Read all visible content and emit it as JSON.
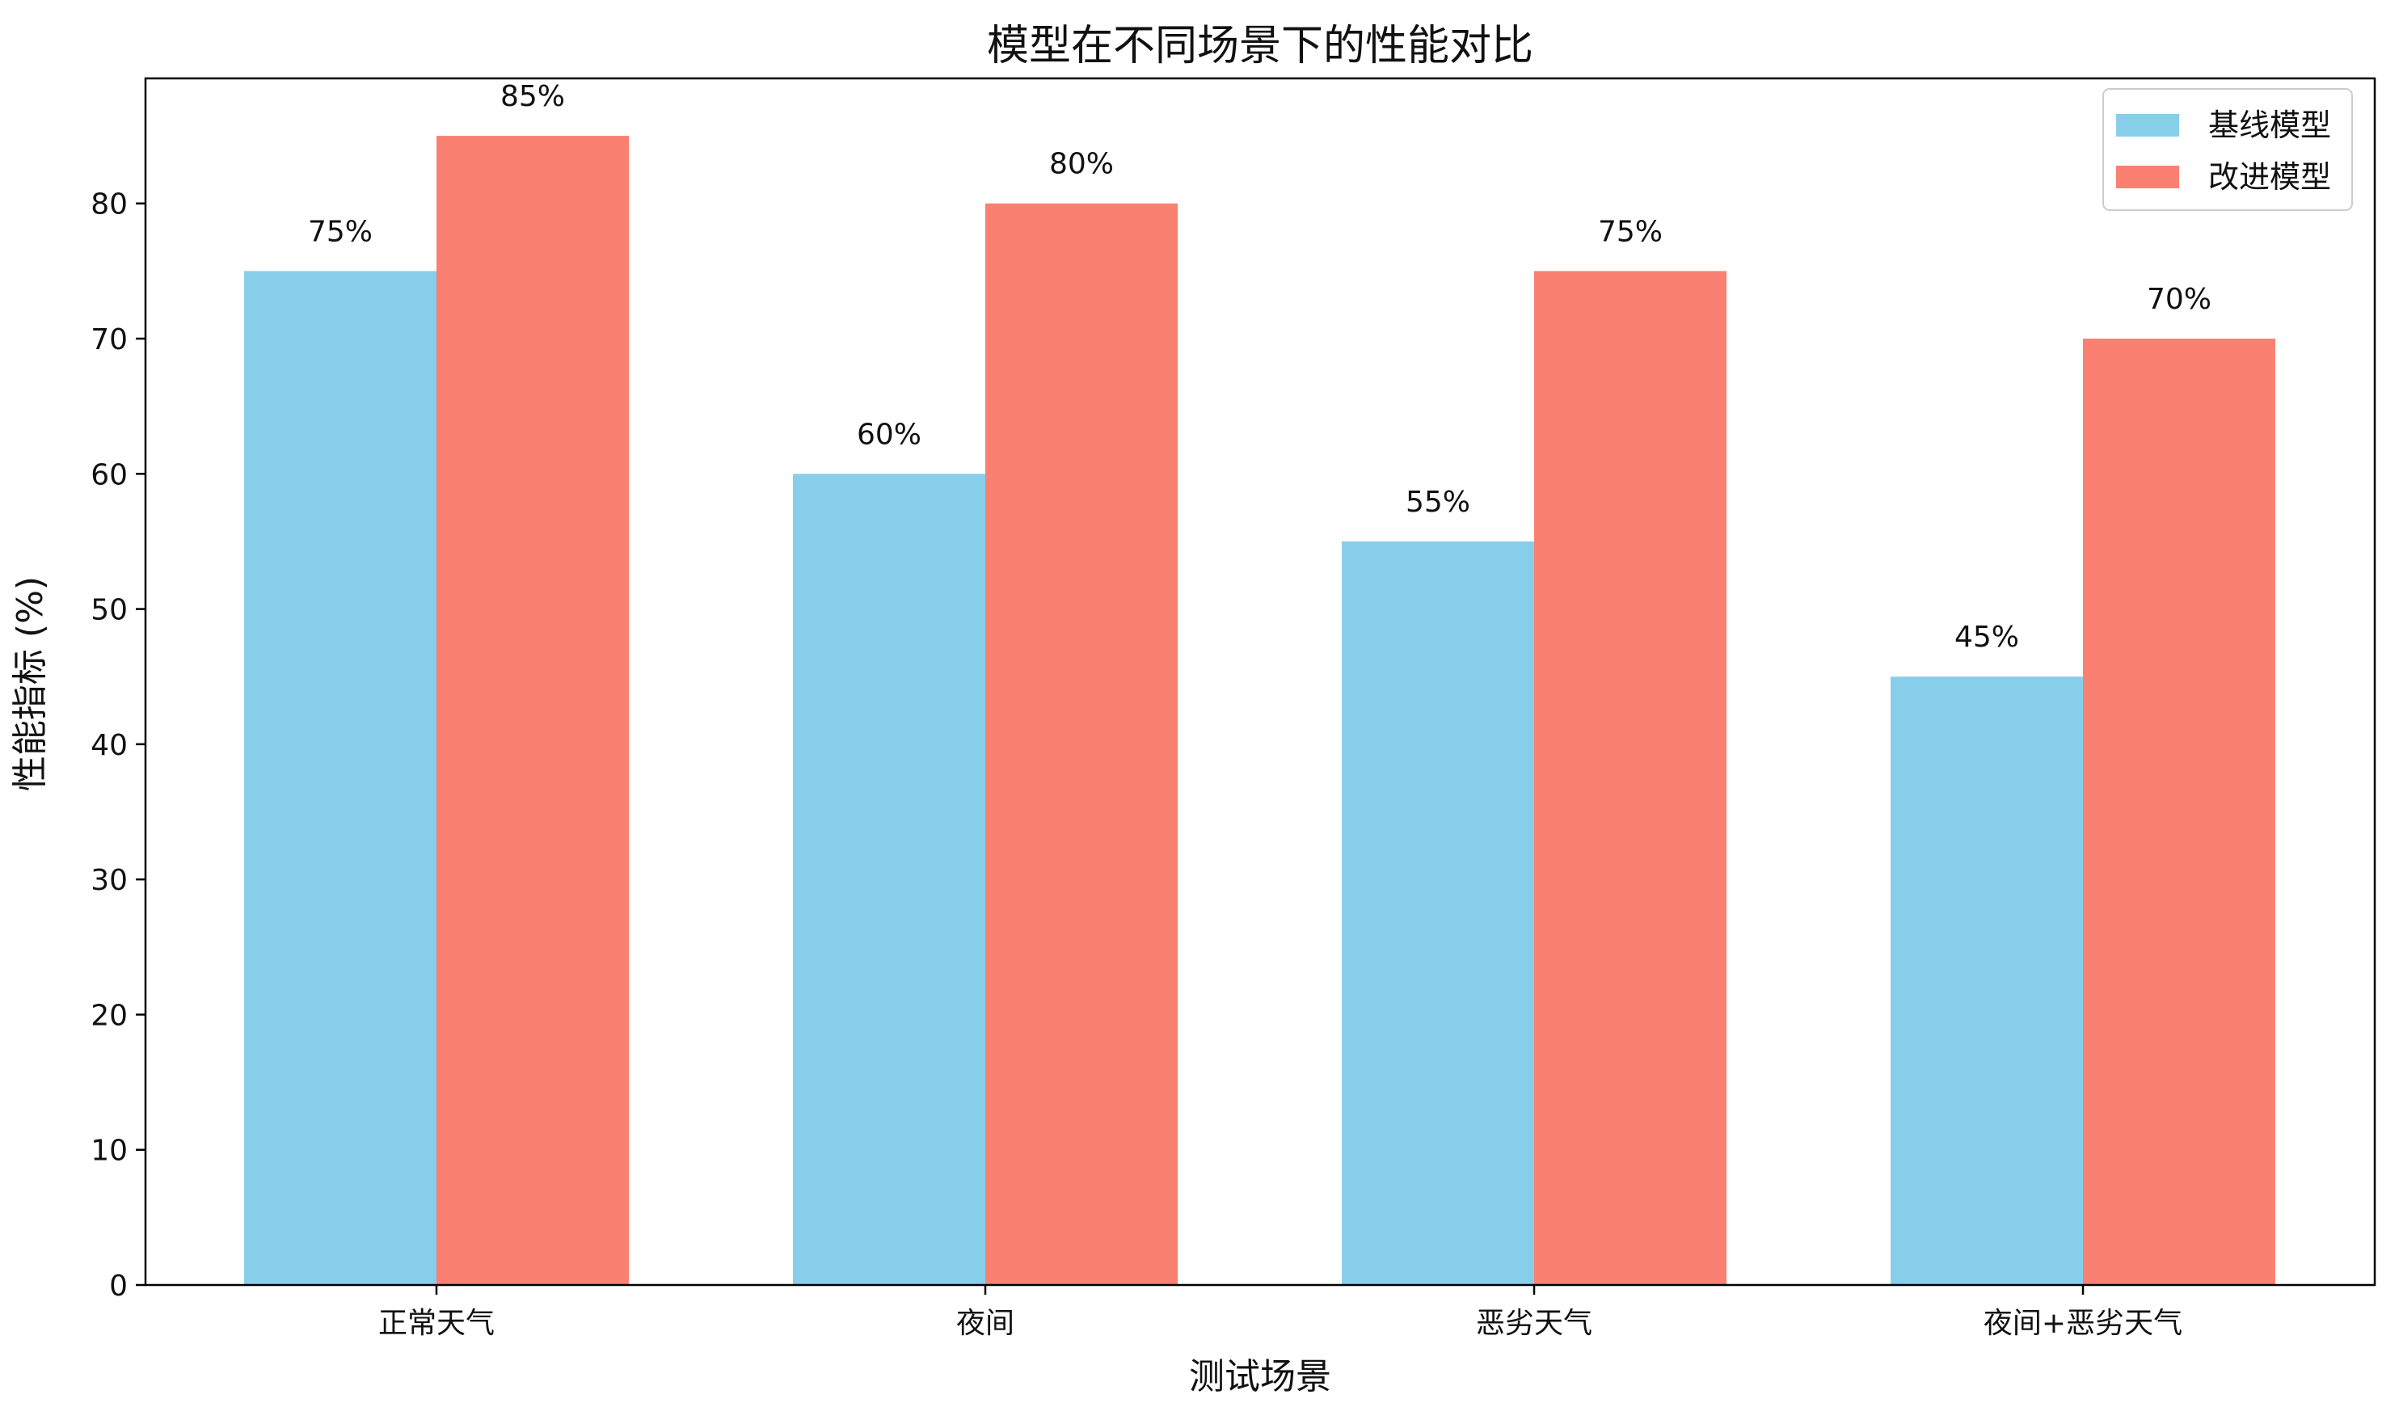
{
  "chart_data": {
    "type": "bar",
    "title": "模型在不同场景下的性能对比",
    "xlabel": "测试场景",
    "ylabel": "性能指标 (%)",
    "categories": [
      "正常天气",
      "夜间",
      "恶劣天气",
      "夜间+恶劣天气"
    ],
    "series": [
      {
        "name": "基线模型",
        "values": [
          75,
          60,
          55,
          45
        ],
        "color": "#87CEEB"
      },
      {
        "name": "改进模型",
        "values": [
          85,
          80,
          75,
          70
        ],
        "color": "#FA8072"
      }
    ],
    "data_label_suffix": "%",
    "ylim": [
      0,
      89.25
    ],
    "yticks": [
      0,
      10,
      20,
      30,
      40,
      50,
      60,
      70,
      80
    ],
    "grid": false,
    "legend_position": "top-right"
  }
}
